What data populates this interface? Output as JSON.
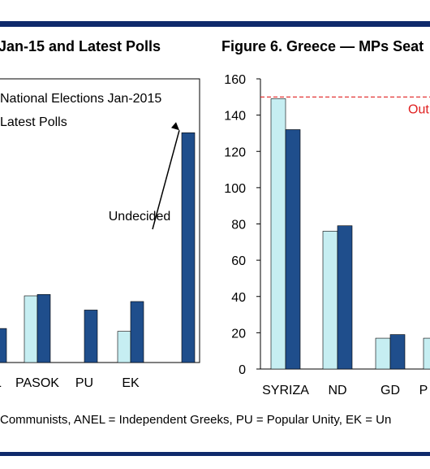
{
  "figures": {
    "left_title": "Jan-15 and Latest Polls",
    "right_title": "Figure 6. Greece — MPs Seat"
  },
  "footnote": "Communists, ANEL = Independent Greeks, PU = Popular Unity, EK = Un",
  "colors": {
    "series1": "#c6eef2",
    "series2": "#1f4e8c",
    "rule": "#0f2a6b",
    "majority_line": "#e02020"
  },
  "chart_data": [
    {
      "type": "bar",
      "title": "Jan-15 and Latest Polls",
      "categories": [
        "EL",
        "PASOK",
        "PU",
        "EK",
        "Undecided"
      ],
      "category_labels": [
        "EL",
        "PASOK",
        "PU",
        "EK",
        ""
      ],
      "series": [
        {
          "name": "National Elections Jan-2015",
          "values": [
            null,
            4.7,
            null,
            2.2,
            null
          ]
        },
        {
          "name": "Latest Polls",
          "values": [
            2.4,
            4.8,
            3.7,
            4.3,
            16.2
          ]
        }
      ],
      "legend": [
        "National Elections Jan-2015",
        "Latest Polls"
      ],
      "legend_position": "top-left",
      "annotations": [
        {
          "text": "Undecided",
          "target": "Undecided"
        }
      ],
      "ylim": [
        0,
        20
      ],
      "grid": false
    },
    {
      "type": "bar",
      "title": "Figure 6. Greece — MPs Seat",
      "categories": [
        "SYRIZA",
        "ND",
        "GD",
        "P"
      ],
      "category_labels": [
        "SYRIZA",
        "ND",
        "GD",
        "P"
      ],
      "series": [
        {
          "values": [
            149,
            76,
            17,
            17
          ]
        },
        {
          "values": [
            132,
            79,
            19,
            null
          ]
        }
      ],
      "yticks": [
        0,
        20,
        40,
        60,
        80,
        100,
        120,
        140,
        160
      ],
      "ylim": [
        0,
        160
      ],
      "reference_line": {
        "value": 150,
        "label": "Out"
      },
      "grid": false
    }
  ]
}
